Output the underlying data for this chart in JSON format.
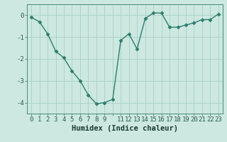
{
  "x": [
    0,
    1,
    2,
    3,
    4,
    5,
    6,
    7,
    8,
    9,
    10,
    11,
    12,
    13,
    14,
    15,
    16,
    17,
    18,
    19,
    20,
    21,
    22,
    23
  ],
  "y": [
    -0.1,
    -0.3,
    -0.85,
    -1.65,
    -1.95,
    -2.55,
    -3.0,
    -3.65,
    -4.05,
    -4.0,
    -3.85,
    -1.15,
    -0.85,
    -1.55,
    -0.15,
    0.1,
    0.1,
    -0.55,
    -0.55,
    -0.45,
    -0.35,
    -0.2,
    -0.2,
    0.05
  ],
  "line_color": "#2e7d6e",
  "marker": "D",
  "marker_size": 2.5,
  "bg_color": "#cce8e0",
  "grid_color": "#aacfc8",
  "xlabel": "Humidex (Indice chaleur)",
  "xlabel_fontsize": 7.5,
  "xlim": [
    -0.5,
    23.5
  ],
  "ylim": [
    -4.5,
    0.5
  ],
  "yticks": [
    0,
    -1,
    -2,
    -3,
    -4
  ],
  "xtick_labels": [
    "0",
    "1",
    "2",
    "3",
    "4",
    "5",
    "6",
    "7",
    "8",
    "9",
    "",
    "11",
    "12",
    "13",
    "14",
    "15",
    "16",
    "17",
    "18",
    "19",
    "20",
    "21",
    "22",
    "23"
  ],
  "tick_fontsize": 6.5,
  "line_width": 1.0,
  "spine_color": "#4a8a7a"
}
